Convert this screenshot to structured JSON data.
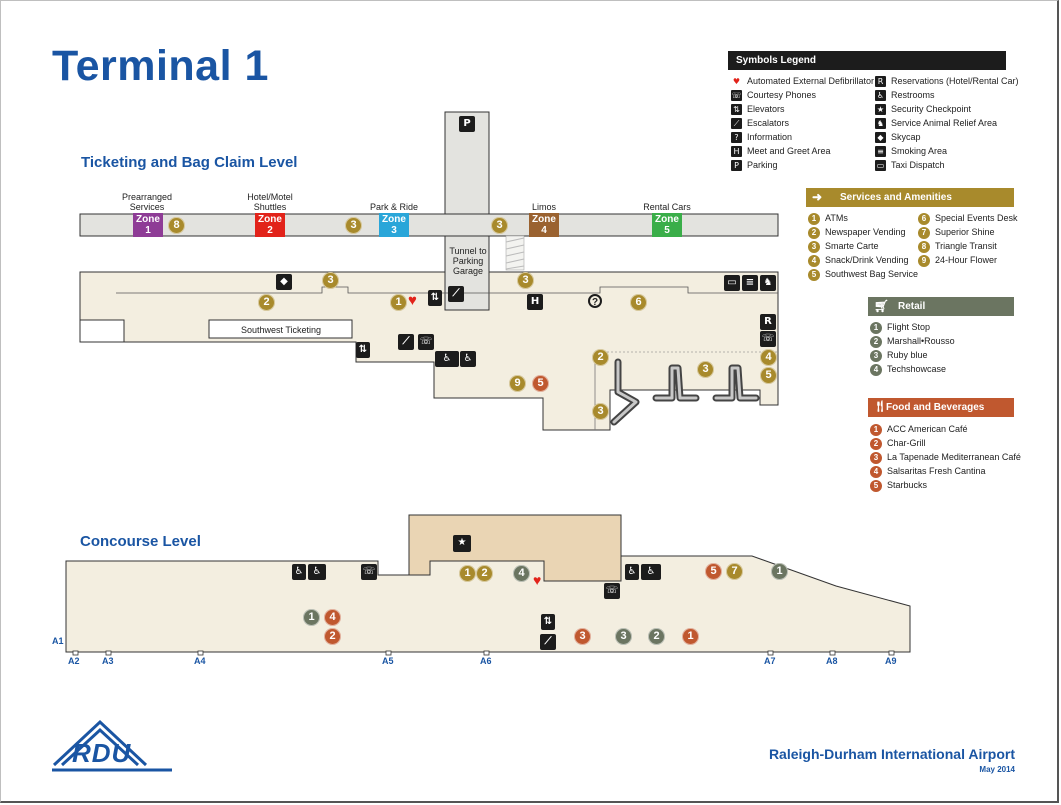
{
  "title": "Terminal 1",
  "levels": {
    "ticketing": "Ticketing and Bag Claim Level",
    "concourse": "Concourse Level"
  },
  "labels": {
    "prearranged": "Prearranged Services",
    "hotel": "Hotel/Motel Shuttles",
    "park_ride": "Park & Ride",
    "limos": "Limos",
    "rental": "Rental Cars",
    "tunnel": "Tunnel to Parking Garage",
    "southwest_ticketing": "Southwest Ticketing"
  },
  "zones": [
    {
      "label": "Zone",
      "num": "1",
      "color": "#8e3c96"
    },
    {
      "label": "Zone",
      "num": "2",
      "color": "#e2231a"
    },
    {
      "label": "Zone",
      "num": "3",
      "color": "#2aa6d9"
    },
    {
      "label": "Zone",
      "num": "4",
      "color": "#9a6230"
    },
    {
      "label": "Zone",
      "num": "5",
      "color": "#3aae49"
    }
  ],
  "gates": [
    "A1",
    "A2",
    "A3",
    "A4",
    "A5",
    "A6",
    "A7",
    "A8",
    "A9"
  ],
  "icons": {
    "parking": "P",
    "reservations": "R",
    "phone": "☏",
    "meet": "H",
    "info": "?",
    "security": "★"
  },
  "symbols_legend": {
    "title": "Symbols Legend",
    "left": [
      {
        "icon": "aed-icon",
        "glyph": "♥",
        "label": "Automated External Defibrillator"
      },
      {
        "icon": "phone-icon",
        "glyph": "☏",
        "label": "Courtesy Phones"
      },
      {
        "icon": "elevator-icon",
        "glyph": "⇅",
        "label": "Elevators"
      },
      {
        "icon": "escalator-icon",
        "glyph": "⟋",
        "label": "Escalators"
      },
      {
        "icon": "information-icon",
        "glyph": "?",
        "label": "Information"
      },
      {
        "icon": "meet-greet-icon",
        "glyph": "H",
        "label": "Meet and Greet Area"
      },
      {
        "icon": "parking-icon",
        "glyph": "P",
        "label": "Parking"
      }
    ],
    "right": [
      {
        "icon": "reservations-icon",
        "glyph": "R",
        "label": "Reservations (Hotel/Rental Car)"
      },
      {
        "icon": "restroom-icon",
        "glyph": "♿",
        "label": "Restrooms"
      },
      {
        "icon": "security-icon",
        "glyph": "★",
        "label": "Security Checkpoint"
      },
      {
        "icon": "service-animal-icon",
        "glyph": "♞",
        "label": "Service Animal Relief Area"
      },
      {
        "icon": "skycap-icon",
        "glyph": "◆",
        "label": "Skycap"
      },
      {
        "icon": "smoking-icon",
        "glyph": "≡",
        "label": "Smoking Area"
      },
      {
        "icon": "taxi-icon",
        "glyph": "▭",
        "label": "Taxi Dispatch"
      }
    ]
  },
  "services": {
    "title": "Services and Amenities",
    "color": "#a88a2c",
    "left": [
      {
        "num": "1",
        "label": "ATMs"
      },
      {
        "num": "2",
        "label": "Newspaper Vending"
      },
      {
        "num": "3",
        "label": "Smarte Carte"
      },
      {
        "num": "4",
        "label": "Snack/Drink Vending"
      },
      {
        "num": "5",
        "label": "Southwest Bag Service"
      }
    ],
    "right": [
      {
        "num": "6",
        "label": "Special Events Desk"
      },
      {
        "num": "7",
        "label": "Superior Shine"
      },
      {
        "num": "8",
        "label": "Triangle Transit"
      },
      {
        "num": "9",
        "label": "24-Hour Flower"
      }
    ]
  },
  "retail": {
    "title": "Retail",
    "color": "#6b7561",
    "items": [
      {
        "num": "1",
        "label": "Flight Stop"
      },
      {
        "num": "2",
        "label": "Marshall•Rousso"
      },
      {
        "num": "3",
        "label": "Ruby blue"
      },
      {
        "num": "4",
        "label": "Techshowcase"
      }
    ]
  },
  "food": {
    "title": "Food and Beverages",
    "color": "#c0582f",
    "items": [
      {
        "num": "1",
        "label": "ACC American Café"
      },
      {
        "num": "2",
        "label": "Char-Grill"
      },
      {
        "num": "3",
        "label": "La Tapenade Mediterranean Café"
      },
      {
        "num": "4",
        "label": "Salsaritas Fresh Cantina"
      },
      {
        "num": "5",
        "label": "Starbucks"
      }
    ]
  },
  "footer": {
    "logo": "RDU",
    "name": "Raleigh-Durham International Airport",
    "date": "May 2014"
  }
}
